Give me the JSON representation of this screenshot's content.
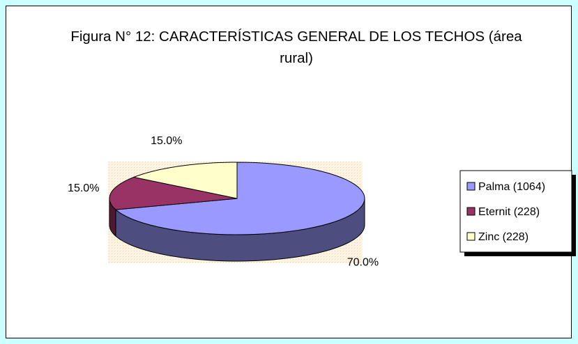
{
  "chart_data": {
    "type": "pie3d",
    "title": "Figura N° 12: CARACTERÍSTICAS GENERAL DE LOS TECHOS (área rural)",
    "categories": [
      "Palma (1064)",
      "Eternit (228)",
      "Zinc (228)"
    ],
    "values": [
      70,
      15,
      15
    ],
    "value_labels": [
      "70.0%",
      "15.0%",
      "15.0%"
    ],
    "colors": [
      "#9999ff",
      "#993366",
      "#ffffcc"
    ],
    "legend": "right"
  }
}
